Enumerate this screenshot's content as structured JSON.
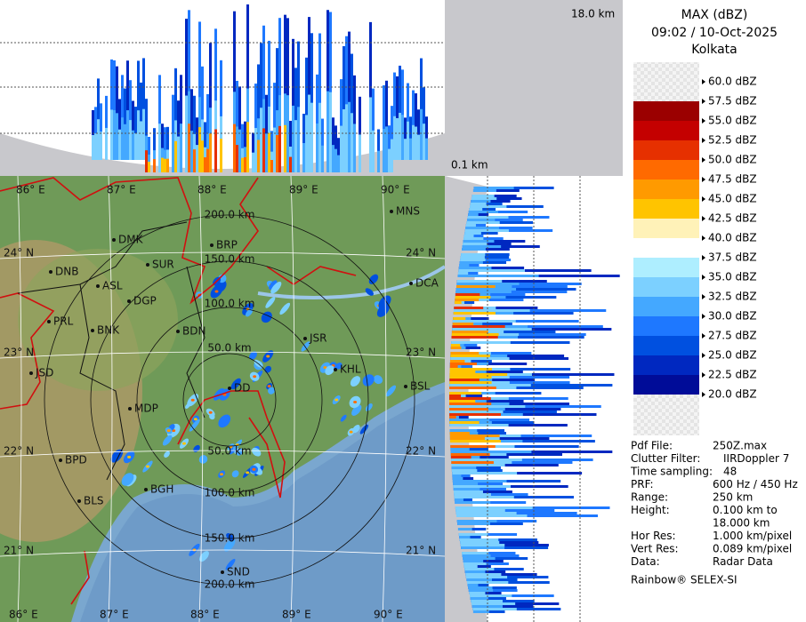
{
  "header": {
    "title": "MAX (dBZ)",
    "datetime": "09:02 / 10-Oct-2025",
    "station": "Kolkata"
  },
  "top_panel": {
    "height_label": "18.0 km"
  },
  "side_panel": {
    "height_label": "0.1 km"
  },
  "legend": [
    {
      "label": "60.0 dBZ",
      "color": "#eeeeee"
    },
    {
      "label": "57.5 dBZ",
      "color": "#9b0000"
    },
    {
      "label": "55.0 dBZ",
      "color": "#c40000"
    },
    {
      "label": "52.5 dBZ",
      "color": "#e63000"
    },
    {
      "label": "50.0 dBZ",
      "color": "#ff6a00"
    },
    {
      "label": "47.5 dBZ",
      "color": "#ff9a00"
    },
    {
      "label": "45.0 dBZ",
      "color": "#ffc400"
    },
    {
      "label": "42.5 dBZ",
      "color": "#fff2b8"
    },
    {
      "label": "40.0 dBZ",
      "color": "#ffffff"
    },
    {
      "label": "37.5 dBZ",
      "color": "#aeeeff"
    },
    {
      "label": "35.0 dBZ",
      "color": "#7cd0ff"
    },
    {
      "label": "32.5 dBZ",
      "color": "#44a8ff"
    },
    {
      "label": "30.0 dBZ",
      "color": "#1e78ff"
    },
    {
      "label": "27.5 dBZ",
      "color": "#0050e0"
    },
    {
      "label": "25.0 dBZ",
      "color": "#0028c0"
    },
    {
      "label": "22.5 dBZ",
      "color": "#000c98"
    },
    {
      "label": "20.0 dBZ"
    }
  ],
  "info": [
    {
      "label": "Pdf File:",
      "value": "250Z.max"
    },
    {
      "label": "Clutter Filter:",
      "value": "IIRDoppler 7"
    },
    {
      "label": "Time sampling:",
      "value": "48"
    },
    {
      "label": "PRF:",
      "value": "600 Hz / 450 Hz"
    },
    {
      "label": "Range:",
      "value": "250 km"
    },
    {
      "label": "Height:",
      "value": "0.100 km to",
      "value2": "18.000 km"
    },
    {
      "label": "Hor Res:",
      "value": "1.000 km/pixel"
    },
    {
      "label": "Vert Res:",
      "value": "0.089 km/pixel"
    },
    {
      "label": "Data:",
      "value": "Radar Data"
    }
  ],
  "footer": "Rainbow® SELEX-SI",
  "map": {
    "longitudes": [
      "86° E",
      "87° E",
      "88° E",
      "89° E",
      "90° E"
    ],
    "latitudes": [
      "24° N",
      "23° N",
      "22° N",
      "21° N"
    ],
    "range_labels_top": [
      "200.0 km",
      "150.0 km",
      "100.0 km",
      "50.0 km"
    ],
    "range_labels_bottom": [
      "50.0 km",
      "100.0 km",
      "150.0 km",
      "200.0 km"
    ],
    "cities": [
      "MNS",
      "DMK",
      "BRP",
      "SUR",
      "DNB",
      "ASL",
      "DGP",
      "DCA",
      "PRL",
      "BNK",
      "BDN",
      "JSR",
      "KHL",
      "JSD",
      "MDP",
      "BSL",
      "DD",
      "BPD",
      "BGH",
      "BLS",
      "SND"
    ]
  }
}
